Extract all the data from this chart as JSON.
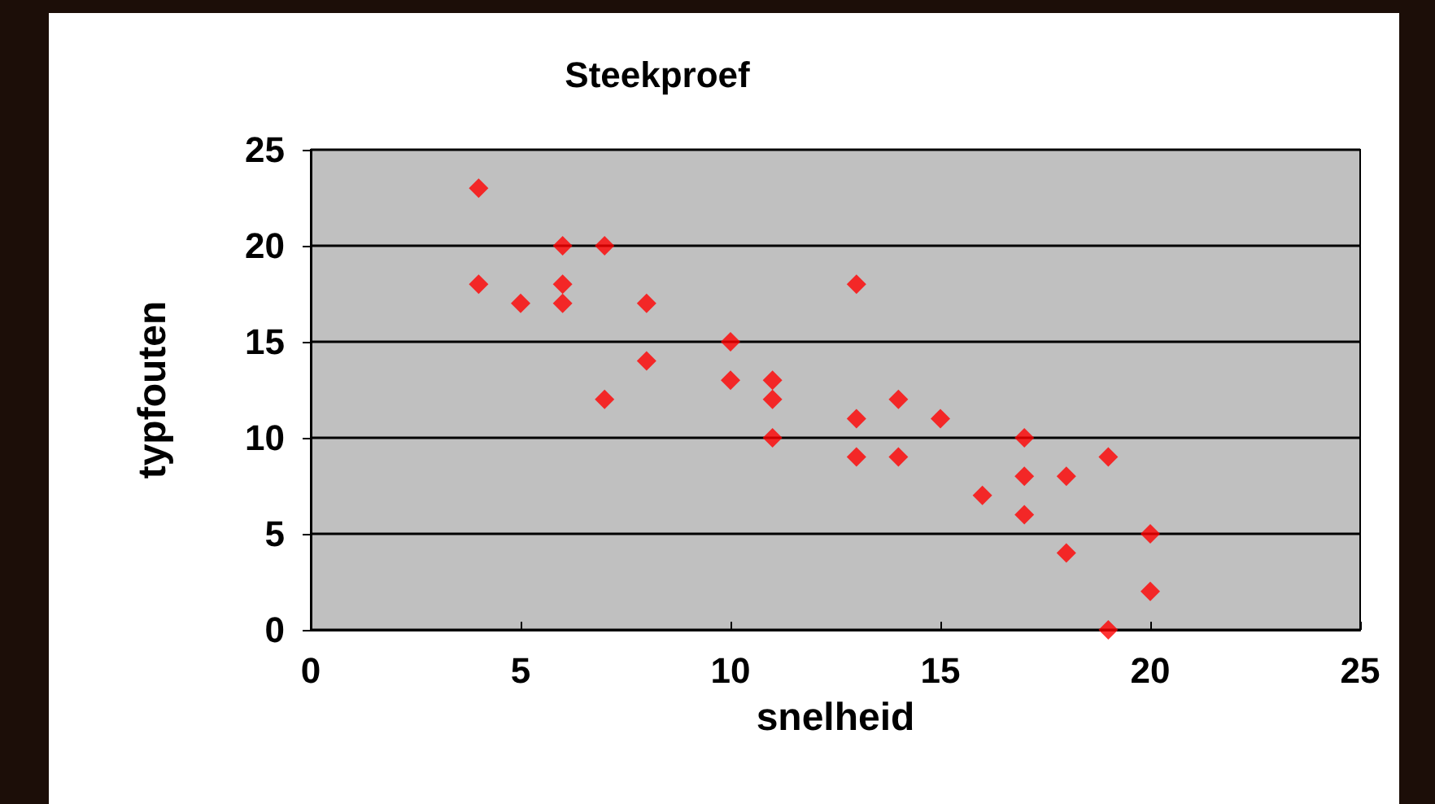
{
  "chart_data": {
    "type": "scatter",
    "title": "Steekproef",
    "xlabel": "snelheid",
    "ylabel": "typfouten",
    "x": [
      4,
      4,
      5,
      6,
      6,
      6,
      7,
      7,
      8,
      8,
      10,
      10,
      11,
      11,
      11,
      13,
      13,
      13,
      14,
      14,
      15,
      16,
      17,
      17,
      17,
      18,
      18,
      19,
      19,
      20,
      20
    ],
    "values": [
      23,
      18,
      17,
      20,
      18,
      17,
      20,
      12,
      17,
      14,
      15,
      13,
      13,
      12,
      10,
      18,
      11,
      9,
      12,
      9,
      11,
      7,
      10,
      8,
      6,
      8,
      4,
      9,
      0,
      5,
      2
    ],
    "color": "#ff0000",
    "marker": "diamond",
    "xlim": [
      0,
      25
    ],
    "xticks": [
      0,
      5,
      10,
      15,
      20,
      25
    ],
    "ylim": [
      0,
      25
    ],
    "yticks": [
      0,
      5,
      10,
      15,
      20,
      25
    ],
    "grid": "y"
  }
}
